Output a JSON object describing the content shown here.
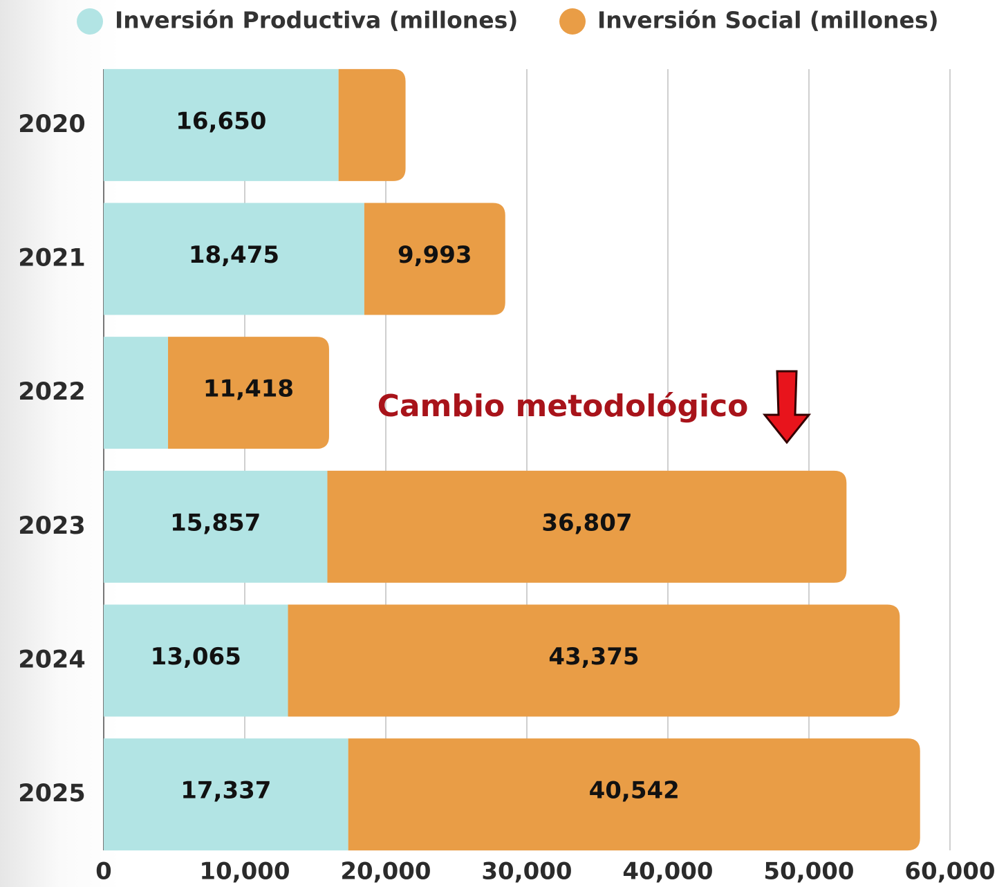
{
  "chart_data": {
    "type": "bar",
    "orientation": "horizontal",
    "stacked": true,
    "categories": [
      "2020",
      "2021",
      "2022",
      "2023",
      "2024",
      "2025"
    ],
    "series": [
      {
        "name": "Inversión Productiva (millones)",
        "color": "#b2e4e4",
        "values": [
          16650,
          18475,
          4560,
          15857,
          13065,
          17337
        ],
        "value_labels": [
          "16,650",
          "18,475",
          null,
          "15,857",
          "13,065",
          "17,337"
        ]
      },
      {
        "name": "Inversión Social (millones)",
        "color": "#e99d46",
        "values": [
          4750,
          9993,
          11418,
          36807,
          43375,
          40542
        ],
        "value_labels": [
          null,
          "9,993",
          "11,418",
          "36,807",
          "43,375",
          "40,542"
        ]
      }
    ],
    "xlim": [
      0,
      60000
    ],
    "xticks": [
      0,
      {
        "value": 10000,
        "label": "10,000"
      },
      {
        "value": 20000,
        "label": "20,000"
      },
      {
        "value": 30000,
        "label": "30,000"
      },
      {
        "value": 40000,
        "label": "40,000"
      },
      {
        "value": 50000,
        "label": "50,000"
      },
      {
        "value": 60000,
        "label": "60,000"
      }
    ],
    "grid": true,
    "annotation": "Cambio metodológico"
  }
}
